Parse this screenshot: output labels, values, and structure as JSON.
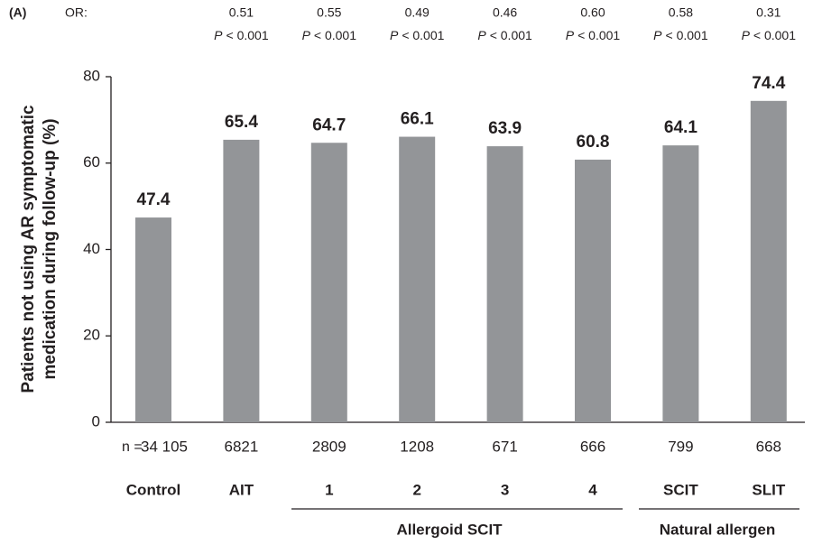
{
  "chart_data": {
    "type": "bar",
    "panel_label": "(A)",
    "or_label": "OR:",
    "or_values": [
      null,
      "0.51",
      "0.55",
      "0.49",
      "0.46",
      "0.60",
      "0.58",
      "0.31"
    ],
    "p_symbol": "P",
    "p_values": [
      null,
      "< 0.001",
      "< 0.001",
      "< 0.001",
      "< 0.001",
      "< 0.001",
      "< 0.001",
      "< 0.001"
    ],
    "y_label": [
      "Patients not using AR symptomatic",
      "medication during follow-up (%)"
    ],
    "n_label": "n =",
    "n_values": [
      "34 105",
      "6821",
      "2809",
      "1208",
      "671",
      "666",
      "799",
      "668"
    ],
    "categories": [
      "Control",
      "AIT",
      "1",
      "2",
      "3",
      "4",
      "SCIT",
      "SLIT"
    ],
    "values": [
      47.4,
      65.4,
      64.7,
      66.1,
      63.9,
      60.8,
      64.1,
      74.4
    ],
    "group_labels": [
      "Allergoid SCIT",
      "Natural allergen"
    ],
    "color": "#939598",
    "ylim": [
      0,
      80
    ],
    "yticks": [
      0,
      20,
      40,
      60,
      80
    ]
  }
}
